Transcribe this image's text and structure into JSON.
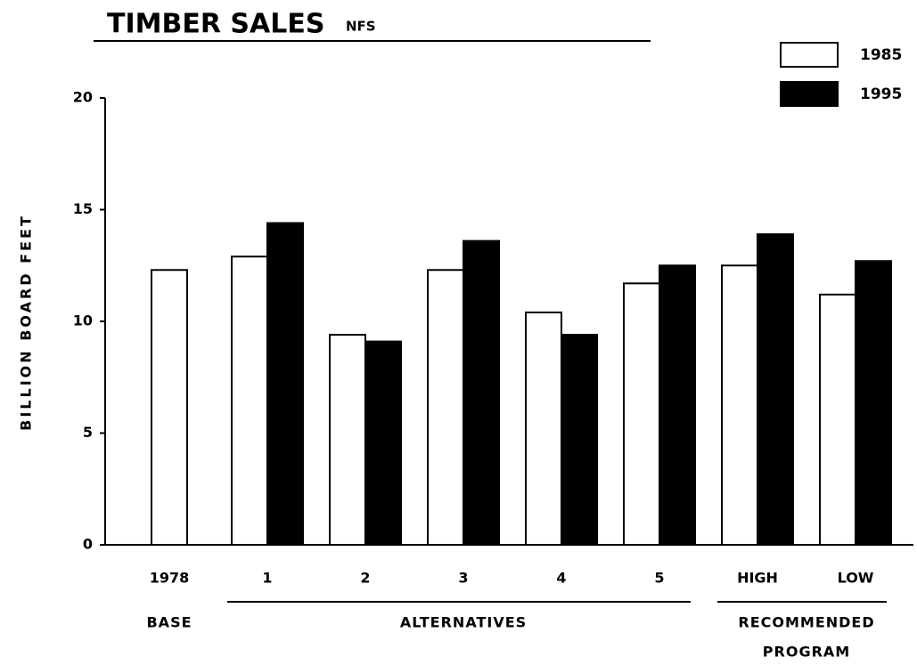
{
  "chart_data": {
    "type": "bar",
    "title": "TIMBER SALES",
    "subtitle": "NFS",
    "y_label": "BILLION BOARD FEET",
    "categories": [
      "1978",
      "1",
      "2",
      "3",
      "4",
      "5",
      "HIGH",
      "LOW"
    ],
    "groups": [
      [
        "BASE"
      ],
      [
        "ALTERNATIVES"
      ],
      [
        "RECOMMENDED",
        "PROGRAM"
      ]
    ],
    "series": [
      {
        "name": "1985",
        "color": "#ffffff",
        "values": [
          12.3,
          12.9,
          9.4,
          12.3,
          10.4,
          11.7,
          12.5,
          11.2
        ]
      },
      {
        "name": "1995",
        "color": "#000000",
        "values": [
          null,
          14.4,
          9.1,
          13.6,
          9.4,
          12.5,
          13.9,
          12.7
        ]
      }
    ],
    "ylim": [
      0,
      20
    ],
    "yticks": [
      0,
      5,
      10,
      15,
      20
    ],
    "legend": "top-right"
  }
}
